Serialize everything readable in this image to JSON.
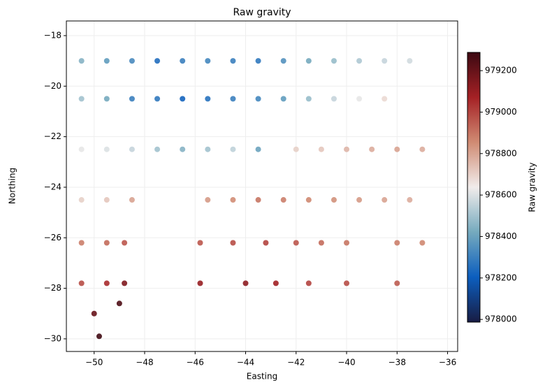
{
  "chart_data": {
    "type": "scatter",
    "title": "Raw gravity",
    "x_label": "Easting",
    "y_label": "Northing",
    "colorbar_label": "Raw gravity",
    "xlim": [
      -51.1,
      -35.6
    ],
    "ylim": [
      -30.5,
      -17.42
    ],
    "xticks": [
      {
        "value": -50,
        "label": "−50"
      },
      {
        "value": -48,
        "label": "−48"
      },
      {
        "value": -46,
        "label": "−46"
      },
      {
        "value": -44,
        "label": "−44"
      },
      {
        "value": -42,
        "label": "−42"
      },
      {
        "value": -40,
        "label": "−40"
      },
      {
        "value": -38,
        "label": "−38"
      },
      {
        "value": -36,
        "label": "−36"
      }
    ],
    "yticks": [
      {
        "value": -18,
        "label": "−18"
      },
      {
        "value": -20,
        "label": "−20"
      },
      {
        "value": -22,
        "label": "−22"
      },
      {
        "value": -24,
        "label": "−24"
      },
      {
        "value": -26,
        "label": "−26"
      },
      {
        "value": -28,
        "label": "−28"
      },
      {
        "value": -30,
        "label": "−30"
      }
    ],
    "clim": [
      977987,
      979288
    ],
    "cticks": [
      978000,
      978200,
      978400,
      978600,
      978800,
      979000,
      979200
    ],
    "colormap": [
      "#181c43",
      "#0c5ebe",
      "#75aabe",
      "#f1eceb",
      "#d08b73",
      "#a52125",
      "#3c0912"
    ],
    "grid": true,
    "x": [
      -50.5,
      -49.5,
      -48.5,
      -47.5,
      -46.5,
      -45.5,
      -44.5,
      -43.5,
      -42.5,
      -41.5,
      -40.5,
      -39.5,
      -38.5,
      -37.5,
      -50.5,
      -49.5,
      -48.5,
      -47.5,
      -46.5,
      -45.5,
      -44.5,
      -43.5,
      -42.5,
      -41.5,
      -40.5,
      -39.5,
      -38.5,
      -50.5,
      -49.5,
      -48.5,
      -47.5,
      -46.5,
      -45.5,
      -44.5,
      -43.5,
      -42.0,
      -41.0,
      -40.0,
      -39.0,
      -38.0,
      -37.0,
      -50.5,
      -49.5,
      -48.5,
      -45.5,
      -44.5,
      -43.5,
      -42.5,
      -41.5,
      -40.5,
      -39.5,
      -38.5,
      -37.5,
      -50.5,
      -49.5,
      -48.8,
      -45.8,
      -44.5,
      -43.2,
      -42.0,
      -41.0,
      -40.0,
      -38.0,
      -37.0,
      -50.5,
      -49.5,
      -48.8,
      -45.8,
      -44.0,
      -42.8,
      -41.5,
      -40.0,
      -38.0,
      -50.0,
      -49.0,
      -49.8
    ],
    "y": [
      -19,
      -19,
      -19,
      -19,
      -19,
      -19,
      -19,
      -19,
      -19,
      -19,
      -19,
      -19,
      -19,
      -19,
      -20.5,
      -20.5,
      -20.5,
      -20.5,
      -20.5,
      -20.5,
      -20.5,
      -20.5,
      -20.5,
      -20.5,
      -20.5,
      -20.5,
      -20.5,
      -22.5,
      -22.5,
      -22.5,
      -22.5,
      -22.5,
      -22.5,
      -22.5,
      -22.5,
      -22.5,
      -22.5,
      -22.5,
      -22.5,
      -22.5,
      -22.5,
      -24.5,
      -24.5,
      -24.5,
      -24.5,
      -24.5,
      -24.5,
      -24.5,
      -24.5,
      -24.5,
      -24.5,
      -24.5,
      -24.5,
      -26.2,
      -26.2,
      -26.2,
      -26.2,
      -26.2,
      -26.2,
      -26.2,
      -26.2,
      -26.2,
      -26.2,
      -26.2,
      -27.8,
      -27.8,
      -27.8,
      -27.8,
      -27.8,
      -27.8,
      -27.8,
      -27.8,
      -27.8,
      -29.0,
      -28.6,
      -29.9
    ],
    "c": [
      978450,
      978380,
      978330,
      978250,
      978300,
      978320,
      978300,
      978280,
      978350,
      978420,
      978480,
      978520,
      978560,
      978580,
      978500,
      978420,
      978300,
      978280,
      978220,
      978260,
      978300,
      978320,
      978380,
      978480,
      978560,
      978620,
      978680,
      978620,
      978600,
      978560,
      978500,
      978450,
      978500,
      978550,
      978400,
      978700,
      978720,
      978760,
      978780,
      978800,
      978780,
      978700,
      978720,
      978800,
      978820,
      978850,
      978900,
      978880,
      978860,
      978840,
      978820,
      978800,
      978780,
      978880,
      978920,
      978960,
      978960,
      978980,
      979000,
      978960,
      978920,
      978900,
      978880,
      978860,
      978980,
      979050,
      979150,
      979100,
      979120,
      979080,
      979000,
      978980,
      978950,
      979200,
      979250,
      979280
    ]
  }
}
